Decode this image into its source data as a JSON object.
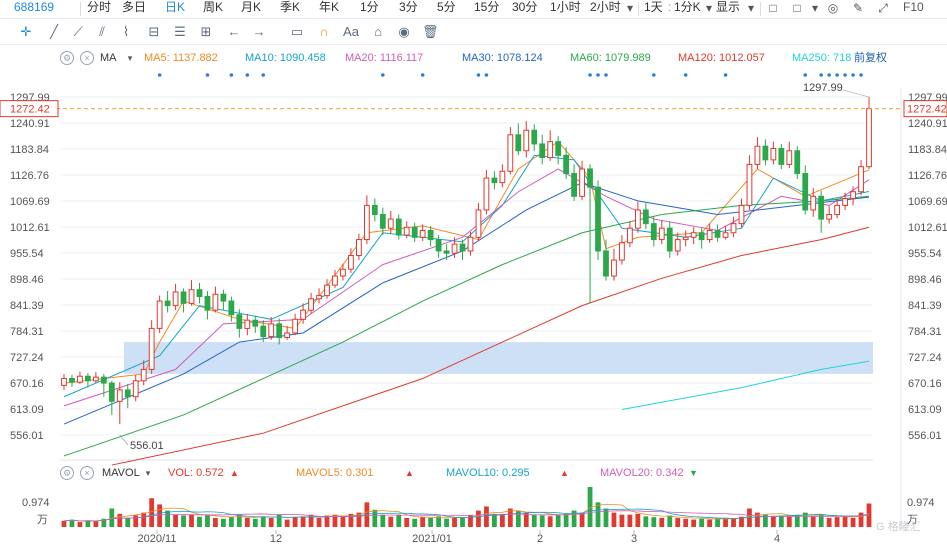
{
  "toolbar": {
    "code": "688169",
    "items": [
      "分时",
      "多日",
      "日K",
      "周K",
      "月K",
      "季K",
      "年K",
      "1分",
      "3分",
      "5分",
      "15分",
      "30分",
      "1小时",
      "2小时",
      "1天",
      "1分K",
      "显示"
    ],
    "active": "日K",
    "fq": "前复权"
  },
  "legend": {
    "indicator": "MA",
    "ma": [
      {
        "label": "MA5: 1137.882",
        "color": "#f08a24"
      },
      {
        "label": "MA10: 1090.458",
        "color": "#16a3c9"
      },
      {
        "label": "MA20: 1116.117",
        "color": "#d05cb8"
      },
      {
        "label": "MA30: 1078.124",
        "color": "#2565c7"
      },
      {
        "label": "MA60: 1079.989",
        "color": "#2aa84a"
      },
      {
        "label": "MA120: 1012.057",
        "color": "#e0392f"
      },
      {
        "label": "MA250: 718",
        "color": "#22d3d6"
      }
    ]
  },
  "vol_legend": {
    "indicator": "MAVOL",
    "items": [
      {
        "label": "VOL: 0.572",
        "color": "#e0392f"
      },
      {
        "label": "MAVOL5: 0.301",
        "color": "#f08a24"
      },
      {
        "label": "MAVOL10: 0.295",
        "color": "#16a3c9"
      },
      {
        "label": "MAVOL20: 0.342",
        "color": "#d05cb8"
      }
    ]
  },
  "chart_data": {
    "type": "candlestick",
    "y_ticks": [
      "1297.99",
      "1240.91",
      "1183.84",
      "1126.76",
      "1069.69",
      "1012.61",
      "955.54",
      "898.46",
      "841.39",
      "784.31",
      "727.24",
      "670.16",
      "613.09",
      "556.01"
    ],
    "ylim": [
      556.01,
      1297.99
    ],
    "current_price": "1272.42",
    "high_label": "1297.99",
    "low_label": "556.01",
    "x_labels": [
      "2020/11",
      "12",
      "2021/01",
      "2",
      "3",
      "4"
    ],
    "vol_tick": "0.974",
    "vol_unit": "万",
    "colors": {
      "up": "#e0392f",
      "down": "#2aa84a",
      "band": "#c9ddf5"
    },
    "candles": [
      [
        665,
        680,
        690,
        655
      ],
      [
        680,
        672,
        688,
        662
      ],
      [
        672,
        685,
        695,
        668
      ],
      [
        685,
        675,
        692,
        660
      ],
      [
        675,
        683,
        694,
        670
      ],
      [
        683,
        670,
        690,
        640
      ],
      [
        670,
        630,
        675,
        600
      ],
      [
        630,
        655,
        672,
        580
      ],
      [
        655,
        640,
        668,
        615
      ],
      [
        640,
        675,
        688,
        630
      ],
      [
        675,
        700,
        720,
        665
      ],
      [
        700,
        790,
        808,
        690
      ],
      [
        790,
        850,
        862,
        780
      ],
      [
        850,
        840,
        872,
        825
      ],
      [
        840,
        870,
        888,
        830
      ],
      [
        870,
        845,
        878,
        825
      ],
      [
        845,
        875,
        896,
        840
      ],
      [
        875,
        860,
        890,
        845
      ],
      [
        860,
        830,
        872,
        810
      ],
      [
        830,
        865,
        882,
        825
      ],
      [
        865,
        850,
        875,
        830
      ],
      [
        850,
        820,
        860,
        805
      ],
      [
        820,
        790,
        832,
        770
      ],
      [
        790,
        808,
        822,
        775
      ],
      [
        808,
        795,
        818,
        780
      ],
      [
        795,
        772,
        808,
        760
      ],
      [
        772,
        800,
        815,
        765
      ],
      [
        800,
        770,
        812,
        755
      ],
      [
        770,
        780,
        795,
        765
      ],
      [
        780,
        810,
        822,
        775
      ],
      [
        810,
        830,
        845,
        800
      ],
      [
        830,
        855,
        868,
        822
      ],
      [
        855,
        862,
        878,
        845
      ],
      [
        862,
        885,
        898,
        855
      ],
      [
        885,
        905,
        918,
        878
      ],
      [
        905,
        920,
        932,
        895
      ],
      [
        920,
        950,
        966,
        912
      ],
      [
        950,
        985,
        998,
        940
      ],
      [
        985,
        1060,
        1082,
        975
      ],
      [
        1060,
        1040,
        1075,
        1025
      ],
      [
        1040,
        1010,
        1055,
        995
      ],
      [
        1010,
        1030,
        1048,
        998
      ],
      [
        1030,
        995,
        1040,
        985
      ],
      [
        995,
        1012,
        1025,
        988
      ],
      [
        1012,
        990,
        1022,
        980
      ],
      [
        990,
        1005,
        1018,
        982
      ],
      [
        1005,
        985,
        1015,
        970
      ],
      [
        985,
        960,
        995,
        945
      ],
      [
        960,
        955,
        975,
        940
      ],
      [
        955,
        975,
        990,
        945
      ],
      [
        975,
        960,
        985,
        940
      ],
      [
        960,
        990,
        1002,
        950
      ],
      [
        990,
        1050,
        1065,
        982
      ],
      [
        1050,
        1120,
        1138,
        1040
      ],
      [
        1120,
        1110,
        1135,
        1095
      ],
      [
        1110,
        1135,
        1150,
        1100
      ],
      [
        1135,
        1215,
        1232,
        1128
      ],
      [
        1215,
        1180,
        1240,
        1170
      ],
      [
        1180,
        1225,
        1245,
        1165
      ],
      [
        1225,
        1195,
        1238,
        1180
      ],
      [
        1195,
        1165,
        1215,
        1150
      ],
      [
        1165,
        1200,
        1225,
        1158
      ],
      [
        1200,
        1170,
        1212,
        1150
      ],
      [
        1170,
        1130,
        1188,
        1118
      ],
      [
        1130,
        1080,
        1150,
        1070
      ],
      [
        1080,
        1140,
        1158,
        1072
      ],
      [
        1140,
        1100,
        1150,
        845
      ],
      [
        1100,
        960,
        1115,
        940
      ],
      [
        960,
        905,
        985,
        895
      ],
      [
        905,
        940,
        965,
        895
      ],
      [
        940,
        978,
        995,
        930
      ],
      [
        978,
        1010,
        1025,
        968
      ],
      [
        1010,
        1050,
        1068,
        1000
      ],
      [
        1050,
        1020,
        1065,
        1008
      ],
      [
        1020,
        985,
        1035,
        970
      ],
      [
        985,
        1010,
        1028,
        975
      ],
      [
        1010,
        960,
        1025,
        945
      ],
      [
        960,
        985,
        1000,
        950
      ],
      [
        985,
        990,
        1005,
        970
      ],
      [
        990,
        1000,
        1012,
        975
      ],
      [
        1000,
        985,
        1010,
        965
      ],
      [
        985,
        1005,
        1020,
        978
      ],
      [
        1005,
        990,
        1018,
        980
      ],
      [
        990,
        1000,
        1015,
        985
      ],
      [
        1000,
        1020,
        1035,
        990
      ],
      [
        1020,
        1060,
        1075,
        1012
      ],
      [
        1060,
        1150,
        1170,
        1050
      ],
      [
        1150,
        1190,
        1210,
        1140
      ],
      [
        1190,
        1160,
        1205,
        1148
      ],
      [
        1160,
        1185,
        1200,
        1150
      ],
      [
        1185,
        1150,
        1195,
        1140
      ],
      [
        1150,
        1180,
        1200,
        1142
      ],
      [
        1180,
        1130,
        1190,
        1118
      ],
      [
        1130,
        1050,
        1148,
        1040
      ],
      [
        1050,
        1080,
        1098,
        1035
      ],
      [
        1080,
        1030,
        1092,
        1000
      ],
      [
        1030,
        1040,
        1058,
        1020
      ],
      [
        1040,
        1060,
        1075,
        1032
      ],
      [
        1060,
        1075,
        1088,
        1050
      ],
      [
        1075,
        1090,
        1102,
        1060
      ],
      [
        1090,
        1145,
        1160,
        1082
      ],
      [
        1145,
        1272.42,
        1297.99,
        1140
      ]
    ],
    "series_points": {
      "ma5": [
        [
          0,
          670
        ],
        [
          10,
          690
        ],
        [
          12,
          760
        ],
        [
          15,
          850
        ],
        [
          22,
          810
        ],
        [
          29,
          790
        ],
        [
          38,
          1000
        ],
        [
          45,
          1015
        ],
        [
          52,
          985
        ],
        [
          57,
          1140
        ],
        [
          62,
          1200
        ],
        [
          66,
          1120
        ],
        [
          68,
          965
        ],
        [
          72,
          990
        ],
        [
          80,
          1000
        ],
        [
          87,
          1140
        ],
        [
          93,
          1080
        ],
        [
          101,
          1137.882
        ]
      ],
      "ma10": [
        [
          0,
          640
        ],
        [
          12,
          730
        ],
        [
          17,
          840
        ],
        [
          26,
          810
        ],
        [
          35,
          880
        ],
        [
          40,
          1000
        ],
        [
          50,
          980
        ],
        [
          55,
          1060
        ],
        [
          59,
          1170
        ],
        [
          64,
          1160
        ],
        [
          70,
          1010
        ],
        [
          78,
          990
        ],
        [
          85,
          1010
        ],
        [
          89,
          1120
        ],
        [
          95,
          1070
        ],
        [
          101,
          1090.458
        ]
      ],
      "ma20": [
        [
          0,
          620
        ],
        [
          14,
          700
        ],
        [
          20,
          800
        ],
        [
          30,
          810
        ],
        [
          40,
          930
        ],
        [
          50,
          990
        ],
        [
          57,
          1090
        ],
        [
          62,
          1140
        ],
        [
          68,
          1080
        ],
        [
          74,
          1030
        ],
        [
          82,
          1005
        ],
        [
          90,
          1080
        ],
        [
          96,
          1060
        ],
        [
          101,
          1116.117
        ]
      ],
      "ma30": [
        [
          0,
          580
        ],
        [
          15,
          690
        ],
        [
          22,
          760
        ],
        [
          30,
          780
        ],
        [
          40,
          890
        ],
        [
          50,
          960
        ],
        [
          58,
          1050
        ],
        [
          65,
          1110
        ],
        [
          72,
          1070
        ],
        [
          82,
          1040
        ],
        [
          92,
          1060
        ],
        [
          101,
          1078.124
        ]
      ],
      "ma60": [
        [
          0,
          510
        ],
        [
          15,
          600
        ],
        [
          25,
          680
        ],
        [
          35,
          760
        ],
        [
          45,
          850
        ],
        [
          55,
          930
        ],
        [
          65,
          1000
        ],
        [
          75,
          1040
        ],
        [
          85,
          1060
        ],
        [
          95,
          1070
        ],
        [
          101,
          1079.989
        ]
      ],
      "ma120": [
        [
          6,
          490
        ],
        [
          25,
          560
        ],
        [
          45,
          680
        ],
        [
          55,
          760
        ],
        [
          65,
          840
        ],
        [
          75,
          900
        ],
        [
          85,
          950
        ],
        [
          95,
          985
        ],
        [
          101,
          1012.057
        ]
      ],
      "ma250": [
        [
          70,
          612
        ],
        [
          85,
          660
        ],
        [
          95,
          700
        ],
        [
          101,
          718
        ]
      ]
    },
    "volume": [
      0.15,
      0.18,
      0.12,
      0.16,
      0.14,
      0.2,
      0.45,
      0.32,
      0.22,
      0.28,
      0.35,
      0.7,
      0.55,
      0.4,
      0.3,
      0.28,
      0.3,
      0.25,
      0.3,
      0.22,
      0.2,
      0.25,
      0.3,
      0.22,
      0.2,
      0.26,
      0.22,
      0.3,
      0.18,
      0.24,
      0.26,
      0.3,
      0.22,
      0.28,
      0.3,
      0.25,
      0.32,
      0.35,
      0.6,
      0.42,
      0.3,
      0.25,
      0.3,
      0.22,
      0.2,
      0.24,
      0.22,
      0.26,
      0.2,
      0.22,
      0.24,
      0.28,
      0.4,
      0.5,
      0.32,
      0.3,
      0.45,
      0.4,
      0.35,
      0.3,
      0.28,
      0.26,
      0.3,
      0.32,
      0.4,
      0.35,
      0.974,
      0.6,
      0.45,
      0.35,
      0.3,
      0.3,
      0.32,
      0.26,
      0.24,
      0.22,
      0.28,
      0.22,
      0.2,
      0.18,
      0.2,
      0.18,
      0.22,
      0.2,
      0.2,
      0.25,
      0.45,
      0.35,
      0.3,
      0.25,
      0.28,
      0.26,
      0.3,
      0.35,
      0.25,
      0.3,
      0.22,
      0.24,
      0.26,
      0.22,
      0.35,
      0.572
    ],
    "markers": [
      {
        "x": 12,
        "row": "up"
      },
      {
        "x": 18,
        "row": "up"
      },
      {
        "x": 21,
        "row": "up"
      },
      {
        "x": 23,
        "row": "up"
      },
      {
        "x": 25,
        "row": "up"
      },
      {
        "x": 40,
        "row": "up"
      },
      {
        "x": 45,
        "row": "up"
      },
      {
        "x": 52,
        "row": "up"
      },
      {
        "x": 53,
        "row": "up"
      },
      {
        "x": 66,
        "row": "up"
      },
      {
        "x": 67,
        "row": "up"
      },
      {
        "x": 68,
        "row": "up"
      },
      {
        "x": 74,
        "row": "up"
      },
      {
        "x": 78,
        "row": "up"
      },
      {
        "x": 83,
        "row": "up"
      },
      {
        "x": 93,
        "row": "up"
      },
      {
        "x": 95,
        "row": "up"
      },
      {
        "x": 96,
        "row": "up"
      },
      {
        "x": 97,
        "row": "up"
      },
      {
        "x": 98,
        "row": "up"
      },
      {
        "x": 99,
        "row": "up"
      },
      {
        "x": 100,
        "row": "up"
      }
    ]
  }
}
